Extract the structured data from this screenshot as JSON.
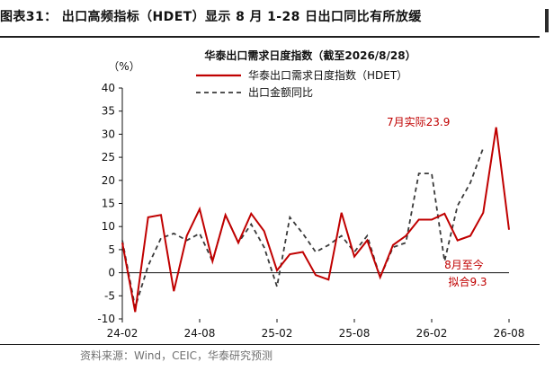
{
  "figure": {
    "title": "图表31： 出口高频指标（HDET）显示 8 月 1-28 日出口同比有所放缓",
    "source": "资料来源：Wind，CEIC，华泰研究预测"
  },
  "colors": {
    "hdet": "#c00000",
    "export": "#3a3a3a",
    "annot": "#c00000",
    "axis": "#111111"
  },
  "chart_data": {
    "type": "line",
    "title": "华泰出口需求日度指数（截至2026/8/28）",
    "ylabel": "（%）",
    "xlabel": "",
    "ylim": [
      -10,
      40
    ],
    "yticks": [
      -10,
      -5,
      0,
      5,
      10,
      15,
      20,
      25,
      30,
      35,
      40
    ],
    "x_start": "2024-02",
    "x_ticks": [
      "24-02",
      "24-08",
      "25-02",
      "25-08",
      "26-02",
      "26-08"
    ],
    "legend": "top",
    "grid": false,
    "series": [
      {
        "name": "华泰出口需求日度指数（HDET）",
        "style": "solid",
        "start_month_index": 0,
        "values": [
          6.5,
          -8.5,
          12.0,
          12.5,
          -4.0,
          8.0,
          13.8,
          2.5,
          12.5,
          6.5,
          12.8,
          9.0,
          0.5,
          4.0,
          4.5,
          -0.5,
          -1.5,
          13.0,
          3.5,
          7.0,
          -1.0,
          6.0,
          8.0,
          11.5,
          11.5,
          12.8,
          7.0,
          8.0,
          13.0,
          31.5,
          9.3
        ]
      },
      {
        "name": "出口金额同比",
        "style": "dashed",
        "start_month_index": 0,
        "values": [
          7.0,
          -7.5,
          1.5,
          7.5,
          8.5,
          7.0,
          8.5,
          2.5,
          12.5,
          6.5,
          10.5,
          5.5,
          -3.0,
          12.0,
          8.5,
          4.5,
          6.0,
          8.0,
          4.5,
          8.0,
          -1.0,
          5.5,
          6.5,
          21.5,
          21.5,
          2.5,
          14.5,
          19.5,
          27.0
        ]
      }
    ],
    "annotations": [
      {
        "id": "july",
        "text": "7月实际23.9"
      },
      {
        "id": "aug_line1",
        "text": "8月至今"
      },
      {
        "id": "aug_line2",
        "text": "拟合9.3"
      }
    ]
  }
}
